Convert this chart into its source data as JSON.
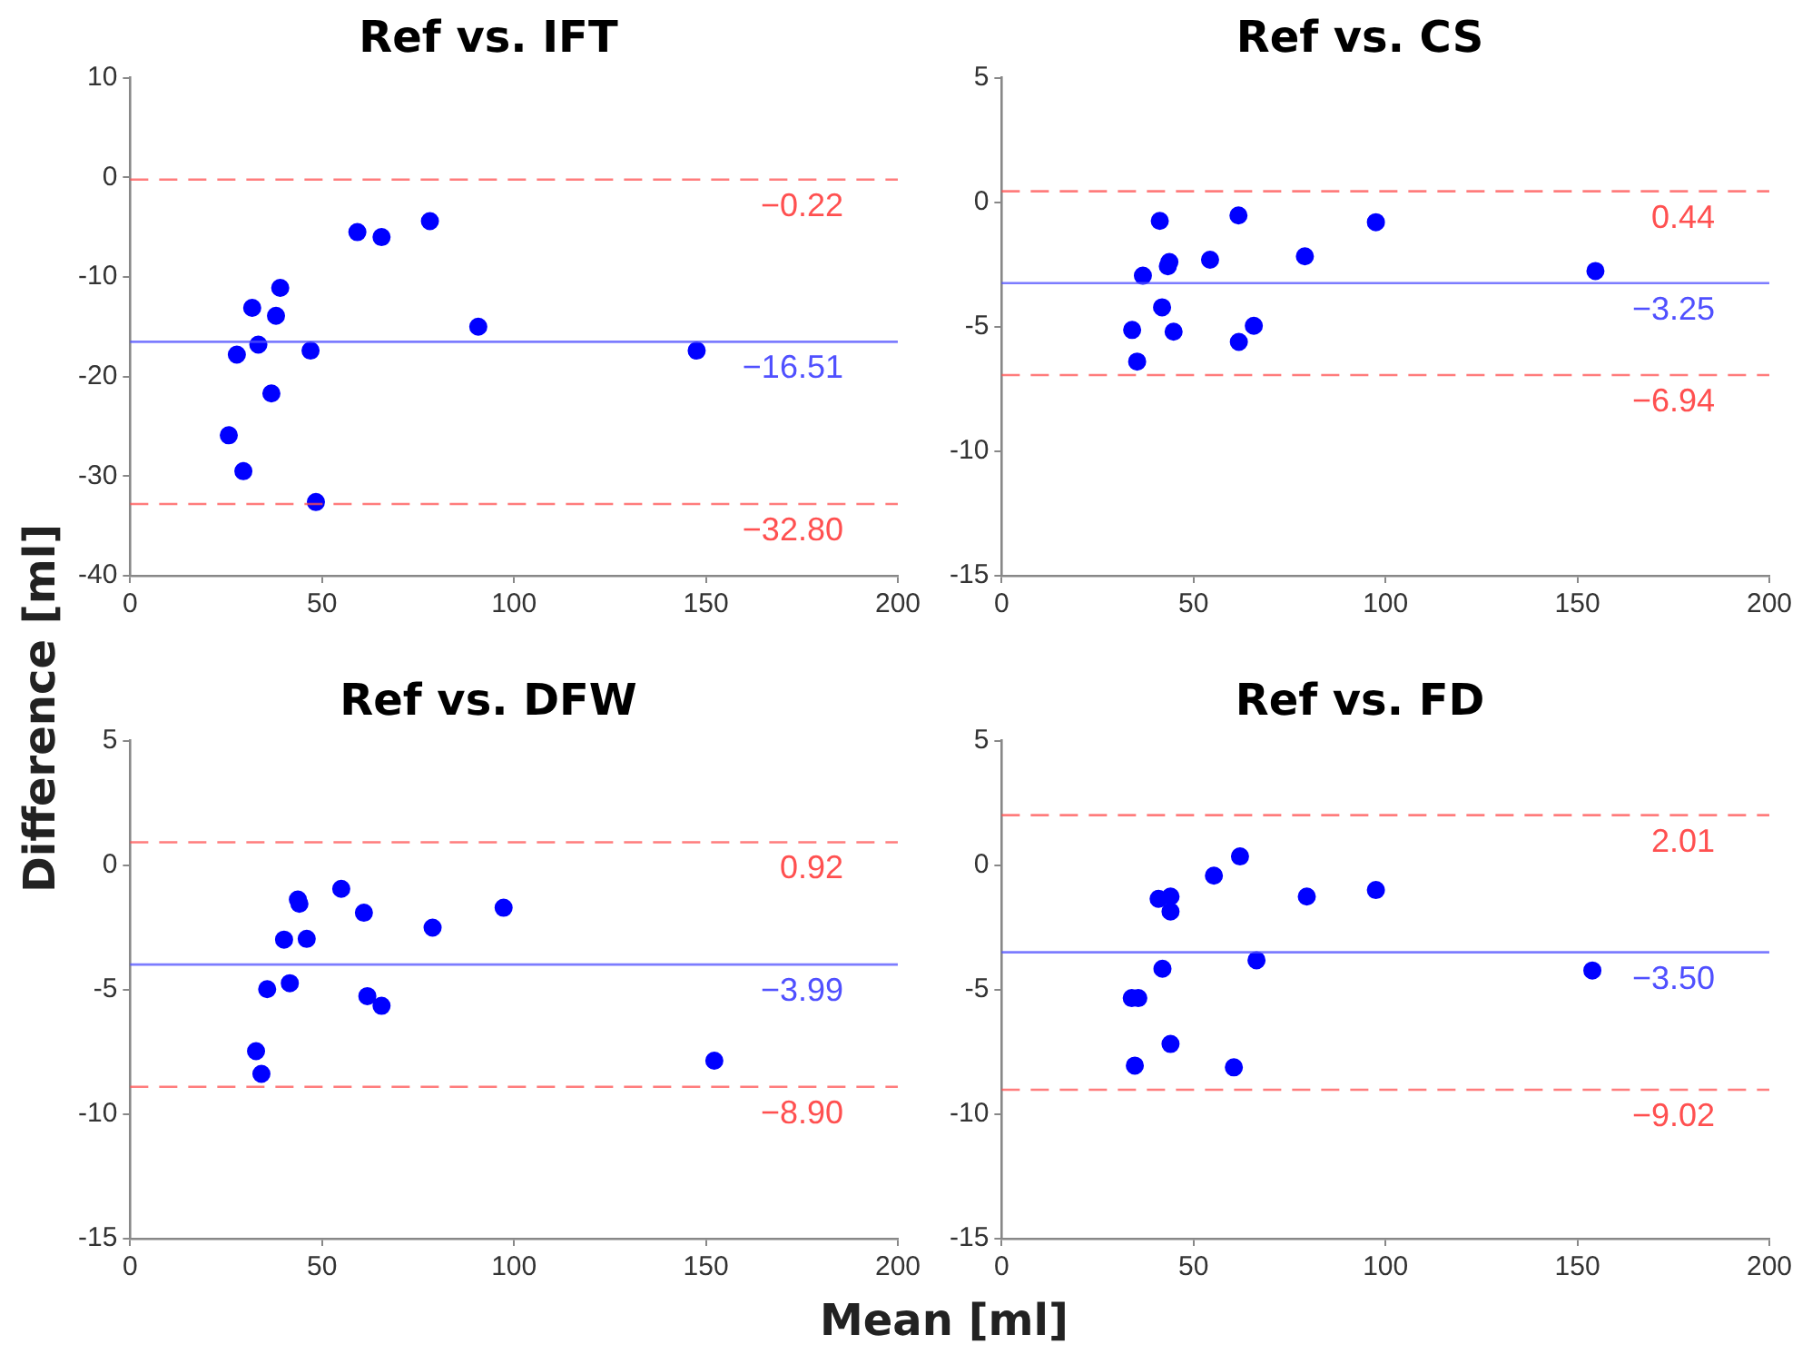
{
  "chart_data": [
    {
      "type": "scatter",
      "title": "Ref vs. IFT",
      "ylabel": "Difference [ml]",
      "xlim": [
        0,
        200
      ],
      "xticks": [
        0,
        50,
        100,
        150,
        200
      ],
      "ylim": [
        -40,
        10
      ],
      "yticks": [
        -40,
        -30,
        -20,
        -10,
        0,
        10
      ],
      "grid": false,
      "legend": false,
      "marker": "circle",
      "series": [
        {
          "color": "#0000ff",
          "x": [
            25.7,
            27.8,
            29.5,
            31.8,
            33.4,
            36.8,
            38.0,
            39.1,
            47.0,
            48.4,
            59.2,
            65.5,
            78.1,
            90.7,
            147.6
          ],
          "values": [
            -25.9,
            -17.8,
            -29.5,
            -13.1,
            -16.8,
            -21.7,
            -13.9,
            -11.1,
            -17.4,
            -32.6,
            -5.5,
            -6.0,
            -4.4,
            -15.0,
            -17.4
          ]
        }
      ],
      "ref_lines": [
        {
          "axis": "y",
          "value": -0.22,
          "label": "−0.22",
          "color": "#ff5050",
          "line_style": "dashed"
        },
        {
          "axis": "y",
          "value": -16.51,
          "label": "−16.51",
          "color": "#5050ff",
          "line_style": "solid"
        },
        {
          "axis": "y",
          "value": -32.8,
          "label": "−32.80",
          "color": "#ff5050",
          "line_style": "dashed"
        }
      ]
    },
    {
      "type": "scatter",
      "title": "Ref vs. CS",
      "xlim": [
        0,
        200
      ],
      "xticks": [
        0,
        50,
        100,
        150,
        200
      ],
      "ylim": [
        -15,
        5
      ],
      "yticks": [
        -15,
        -10,
        -5,
        0,
        5
      ],
      "grid": false,
      "legend": false,
      "marker": "circle",
      "series": [
        {
          "color": "#0000ff",
          "x": [
            34.0,
            35.3,
            36.8,
            41.2,
            41.8,
            43.3,
            43.7,
            44.8,
            54.3,
            61.7,
            61.8,
            65.7,
            79.0,
            97.5,
            154.7
          ],
          "values": [
            -5.13,
            -6.4,
            -2.95,
            -0.75,
            -4.22,
            -2.57,
            -2.4,
            -5.2,
            -2.31,
            -0.53,
            -5.61,
            -4.96,
            -2.17,
            -0.8,
            -2.76
          ]
        }
      ],
      "ref_lines": [
        {
          "axis": "y",
          "value": 0.44,
          "label": "0.44",
          "color": "#ff5050",
          "line_style": "dashed"
        },
        {
          "axis": "y",
          "value": -3.25,
          "label": "−3.25",
          "color": "#5050ff",
          "line_style": "solid"
        },
        {
          "axis": "y",
          "value": -6.94,
          "label": "−6.94",
          "color": "#ff5050",
          "line_style": "dashed"
        }
      ]
    },
    {
      "type": "scatter",
      "title": "Ref vs. DFW",
      "xlabel": "Mean [ml]",
      "xlim": [
        0,
        200
      ],
      "xticks": [
        0,
        50,
        100,
        150,
        200
      ],
      "ylim": [
        -15,
        5
      ],
      "yticks": [
        -15,
        -10,
        -5,
        0,
        5
      ],
      "grid": false,
      "legend": false,
      "marker": "circle",
      "series": [
        {
          "color": "#0000ff",
          "x": [
            32.8,
            34.2,
            35.7,
            40.1,
            41.6,
            43.7,
            44.1,
            46.0,
            55.0,
            60.9,
            61.8,
            65.5,
            78.8,
            97.3,
            152.2
          ],
          "values": [
            -7.47,
            -8.38,
            -4.98,
            -2.99,
            -4.74,
            -1.38,
            -1.55,
            -2.96,
            -0.95,
            -1.91,
            -5.26,
            -5.65,
            -2.51,
            -1.71,
            -7.85
          ]
        }
      ],
      "ref_lines": [
        {
          "axis": "y",
          "value": 0.92,
          "label": "0.92",
          "color": "#ff5050",
          "line_style": "dashed"
        },
        {
          "axis": "y",
          "value": -3.99,
          "label": "−3.99",
          "color": "#5050ff",
          "line_style": "solid"
        },
        {
          "axis": "y",
          "value": -8.9,
          "label": "−8.90",
          "color": "#ff5050",
          "line_style": "dashed"
        }
      ]
    },
    {
      "type": "scatter",
      "title": "Ref vs. FD",
      "xlim": [
        0,
        200
      ],
      "xticks": [
        0,
        50,
        100,
        150,
        200
      ],
      "ylim": [
        -15,
        5
      ],
      "yticks": [
        -15,
        -10,
        -5,
        0,
        5
      ],
      "grid": false,
      "legend": false,
      "marker": "circle",
      "series": [
        {
          "color": "#0000ff",
          "x": [
            33.9,
            35.6,
            34.7,
            40.9,
            41.9,
            44.0,
            44.0,
            44.0,
            55.3,
            62.1,
            60.5,
            66.4,
            79.5,
            97.5,
            153.9
          ],
          "values": [
            -5.34,
            -5.34,
            -8.05,
            -1.35,
            -4.16,
            -1.26,
            -1.86,
            -7.18,
            -0.42,
            0.35,
            -8.12,
            -3.82,
            -1.26,
            -1.0,
            -4.23
          ]
        }
      ],
      "ref_lines": [
        {
          "axis": "y",
          "value": 2.01,
          "label": "2.01",
          "color": "#ff5050",
          "line_style": "dashed"
        },
        {
          "axis": "y",
          "value": -3.5,
          "label": "−3.50",
          "color": "#5050ff",
          "line_style": "solid"
        },
        {
          "axis": "y",
          "value": -9.02,
          "label": "−9.02",
          "color": "#ff5050",
          "line_style": "dashed"
        }
      ]
    }
  ]
}
